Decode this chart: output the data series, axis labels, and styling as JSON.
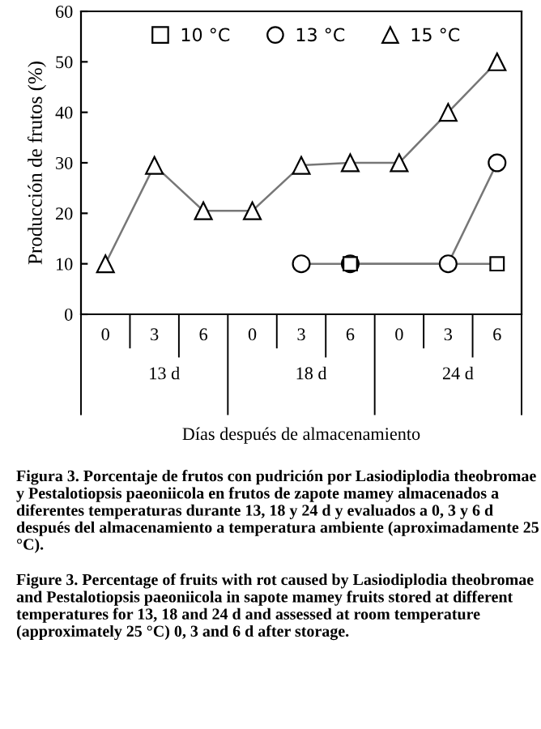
{
  "chart_data": {
    "type": "line",
    "xlabel": "Días después de almacenamiento",
    "ylabel": "Producción de frutos (%)",
    "categories": [
      "0",
      "3",
      "6",
      "0",
      "3",
      "6",
      "0",
      "3",
      "6"
    ],
    "ylim": [
      0,
      60
    ],
    "yticks": [
      0,
      10,
      20,
      30,
      40,
      50,
      60
    ],
    "grid": false,
    "legend": "top",
    "series": [
      {
        "name": "10 °C",
        "color": "#000000",
        "marker": "square",
        "values": [
          null,
          null,
          null,
          null,
          null,
          10,
          null,
          null,
          10
        ]
      },
      {
        "name": "13 °C",
        "color": "#000000",
        "marker": "circle",
        "values": [
          null,
          null,
          null,
          null,
          10,
          10,
          null,
          10,
          30
        ]
      },
      {
        "name": "15 °C",
        "color": "#000000",
        "marker": "triangle",
        "values": [
          10,
          29.5,
          20.5,
          20.5,
          29.5,
          30,
          30,
          40,
          50
        ]
      }
    ],
    "annotations": [
      "13 d",
      "18 d",
      "24 d",
      "Figura 3. Porcentaje de frutos con pudrición por Lasiodiplodia theobromae y Pestalotiopsis paeoniicola en frutos de zapote mamey almacenados a diferentes temperaturas durante 13, 18 y 24 d y evaluados a 0, 3 y 6 d después del almacenamiento a temperatura ambiente (aproximadamente 25 °C).",
      "Figure 3. Percentage of fruits with rot caused by Lasiodiplodia theobromae and Pestalotiopsis paeoniicola in sapote mamey fruits stored at different temperatures for 13, 18 and 24 d and assessed at room temperature (approximately 25 °C) 0, 3 and 6 d after storage."
    ]
  }
}
